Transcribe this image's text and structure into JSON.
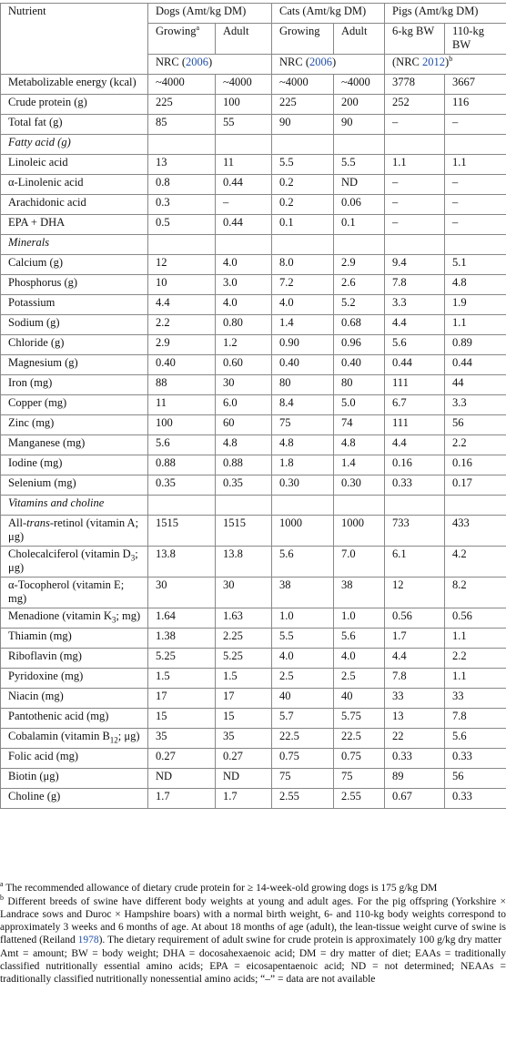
{
  "header": {
    "nutrient": "Nutrient",
    "dogs": "Dogs (Amt/kg DM)",
    "cats": "Cats (Amt/kg DM)",
    "pigs": "Pigs (Amt/kg DM)",
    "dogs_growing": "Growing",
    "dogs_growing_mark": "a",
    "dogs_adult": "Adult",
    "cats_growing": "Growing",
    "cats_adult": "Adult",
    "pigs_6kg": "6-kg BW",
    "pigs_110kg": "110-kg BW",
    "ref_dogs_pre": "NRC (",
    "ref_dogs_year": "2006",
    "ref_dogs_post": ")",
    "ref_cats_pre": "NRC (",
    "ref_cats_year": "2006",
    "ref_cats_post": ")",
    "ref_pigs_pre": "(NRC ",
    "ref_pigs_year": "2012",
    "ref_pigs_post": ")",
    "ref_pigs_mark": "b"
  },
  "rows": [
    {
      "label": "Metabolizable energy (kcal)",
      "v": [
        "~4000",
        "~4000",
        "~4000",
        "~4000",
        "3778",
        "3667"
      ]
    },
    {
      "label": "Crude protein (g)",
      "v": [
        "225",
        "100",
        "225",
        "200",
        "252",
        "116"
      ]
    },
    {
      "label": "Total fat (g)",
      "v": [
        "85",
        "55",
        "90",
        "90",
        "–",
        "–"
      ]
    },
    {
      "section": "Fatty acid (g)"
    },
    {
      "label": "Linoleic acid",
      "v": [
        "13",
        "11",
        "5.5",
        "5.5",
        "1.1",
        "1.1"
      ]
    },
    {
      "label": "α-Linolenic acid",
      "v": [
        "0.8",
        "0.44",
        "0.2",
        "ND",
        "–",
        "–"
      ]
    },
    {
      "label": "Arachidonic acid",
      "v": [
        "0.3",
        "–",
        "0.2",
        "0.06",
        "–",
        "–"
      ]
    },
    {
      "label": "EPA + DHA",
      "v": [
        "0.5",
        "0.44",
        "0.1",
        "0.1",
        "–",
        "–"
      ]
    },
    {
      "section": "Minerals"
    },
    {
      "label": "Calcium (g)",
      "v": [
        "12",
        "4.0",
        "8.0",
        "2.9",
        "9.4",
        "5.1"
      ]
    },
    {
      "label": "Phosphorus (g)",
      "v": [
        "10",
        "3.0",
        "7.2",
        "2.6",
        "7.8",
        "4.8"
      ]
    },
    {
      "label": "Potassium",
      "v": [
        "4.4",
        "4.0",
        "4.0",
        "5.2",
        "3.3",
        "1.9"
      ]
    },
    {
      "label": "Sodium (g)",
      "v": [
        "2.2",
        "0.80",
        "1.4",
        "0.68",
        "4.4",
        "1.1"
      ]
    },
    {
      "label": "Chloride (g)",
      "v": [
        "2.9",
        "1.2",
        "0.90",
        "0.96",
        "5.6",
        "0.89"
      ]
    },
    {
      "label": "Magnesium (g)",
      "v": [
        "0.40",
        "0.60",
        "0.40",
        "0.40",
        "0.44",
        "0.44"
      ]
    },
    {
      "label": "Iron (mg)",
      "v": [
        "88",
        "30",
        "80",
        "80",
        "111",
        "44"
      ]
    },
    {
      "label": "Copper (mg)",
      "v": [
        "11",
        "6.0",
        "8.4",
        "5.0",
        "6.7",
        "3.3"
      ]
    },
    {
      "label": "Zinc (mg)",
      "v": [
        "100",
        "60",
        "75",
        "74",
        "111",
        "56"
      ]
    },
    {
      "label": "Manganese (mg)",
      "v": [
        "5.6",
        "4.8",
        "4.8",
        "4.8",
        "4.4",
        "2.2"
      ]
    },
    {
      "label": "Iodine (mg)",
      "v": [
        "0.88",
        "0.88",
        "1.8",
        "1.4",
        "0.16",
        "0.16"
      ]
    },
    {
      "label": "Selenium (mg)",
      "v": [
        "0.35",
        "0.35",
        "0.30",
        "0.30",
        "0.33",
        "0.17"
      ]
    },
    {
      "section": "Vitamins and choline"
    },
    {
      "label_a": "All-",
      "label_i": "trans",
      "label_b": "-retinol (vitamin A; μg)",
      "v": [
        "1515",
        "1515",
        "1000",
        "1000",
        "733",
        "433"
      ]
    },
    {
      "label_a": "Cholecalciferol (vitamin D",
      "label_sub": "3",
      "label_b": "; μg)",
      "v": [
        "13.8",
        "13.8",
        "5.6",
        "7.0",
        "6.1",
        "4.2"
      ]
    },
    {
      "label": "α-Tocopherol (vitamin E; mg)",
      "v": [
        "30",
        "30",
        "38",
        "38",
        "12",
        "8.2"
      ]
    },
    {
      "label_a": "Menadione (vitamin K",
      "label_sub": "3",
      "label_b": "; mg)",
      "v": [
        "1.64",
        "1.63",
        "1.0",
        "1.0",
        "0.56",
        "0.56"
      ]
    },
    {
      "label": "Thiamin (mg)",
      "v": [
        "1.38",
        "2.25",
        "5.5",
        "5.6",
        "1.7",
        "1.1"
      ]
    },
    {
      "label": "Riboflavin (mg)",
      "v": [
        "5.25",
        "5.25",
        "4.0",
        "4.0",
        "4.4",
        "2.2"
      ]
    },
    {
      "label": "Pyridoxine (mg)",
      "v": [
        "1.5",
        "1.5",
        "2.5",
        "2.5",
        "7.8",
        "1.1"
      ]
    },
    {
      "label": "Niacin (mg)",
      "v": [
        "17",
        "17",
        "40",
        "40",
        "33",
        "33"
      ]
    },
    {
      "label": "Pantothenic acid (mg)",
      "v": [
        "15",
        "15",
        "5.7",
        "5.75",
        "13",
        "7.8"
      ]
    },
    {
      "label_a": "Cobalamin (vitamin B",
      "label_sub": "12",
      "label_b": "; μg)",
      "v": [
        "35",
        "35",
        "22.5",
        "22.5",
        "22",
        "5.6"
      ]
    },
    {
      "label": "Folic acid (mg)",
      "v": [
        "0.27",
        "0.27",
        "0.75",
        "0.75",
        "0.33",
        "0.33"
      ]
    },
    {
      "label": "Biotin (μg)",
      "v": [
        "ND",
        "ND",
        "75",
        "75",
        "89",
        "56"
      ]
    },
    {
      "label": "Choline (g)",
      "v": [
        "1.7",
        "1.7",
        "2.55",
        "2.55",
        "0.67",
        "0.33"
      ]
    }
  ],
  "footnotes": {
    "a_mark": "a",
    "a_text": "The recommended allowance of dietary crude protein for ≥ 14-week-old growing dogs is 175 g/kg DM",
    "b_mark": "b",
    "b_text_pre": "Different breeds of swine have different body weights at young and adult ages. For the pig offspring (Yorkshire × Landrace sows and Duroc × Hampshire boars) with a normal birth weight, 6- and 110-kg body weights correspond to approximately 3 weeks and 6 months of age. At about 18 months of age (adult), the lean-tissue weight curve of swine is flattened (Reiland ",
    "b_ref": "1978",
    "b_text_post": "). The dietary requirement of adult swine for crude protein is approximately 100 g/kg dry matter",
    "abbrev": "Amt = amount; BW = body weight; DHA = docosahexaenoic acid; DM = dry matter of diet; EAAs = traditionally classified nutritionally essential amino acids; EPA = eicosapentaenoic acid; ND = not determined; NEAAs = traditionally classified nutritionally nonessential amino acids; “–” = data are not available"
  }
}
